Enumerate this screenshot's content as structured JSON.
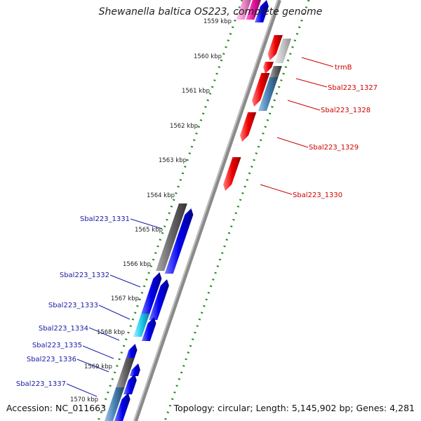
{
  "title": "Shewanella baltica OS223, complete genome",
  "footer": {
    "accession": "Accession: NC_011663",
    "topology": "Topology: circular; Length: 5,145,902 bp; Genes: 4,281"
  },
  "colors": {
    "forward_gene": "#0000ee",
    "reverse_gene": "#ee0000",
    "forward_label": "#1a1aa6",
    "reverse_label": "#cc0000",
    "grey_feature": "#666666",
    "steel_feature": "#4682b4",
    "cyan_feature": "#1ec8ee",
    "backbone": "#8a8a8a",
    "tick_dots": "#1e8c1e"
  },
  "ruler": [
    {
      "label": "1559 kbp"
    },
    {
      "label": "1560 kbp"
    },
    {
      "label": "1561 kbp"
    },
    {
      "label": "1562 kbp"
    },
    {
      "label": "1563 kbp"
    },
    {
      "label": "1564 kbp"
    },
    {
      "label": "1565 kbp"
    },
    {
      "label": "1566 kbp"
    },
    {
      "label": "1567 kbp"
    },
    {
      "label": "1568 kbp"
    },
    {
      "label": "1569 kbp"
    },
    {
      "label": "1570 kbp"
    }
  ],
  "gene_labels_reverse": [
    {
      "label": "trmB"
    },
    {
      "label": "Sbal223_1327"
    },
    {
      "label": "Sbal223_1328"
    },
    {
      "label": "Sbal223_1329"
    },
    {
      "label": "Sbal223_1330"
    }
  ],
  "gene_labels_forward": [
    {
      "label": "Sbal223_1331"
    },
    {
      "label": "Sbal223_1332"
    },
    {
      "label": "Sbal223_1333"
    },
    {
      "label": "Sbal223_1334"
    },
    {
      "label": "Sbal223_1335"
    },
    {
      "label": "Sbal223_1336"
    },
    {
      "label": "Sbal223_1337"
    }
  ]
}
